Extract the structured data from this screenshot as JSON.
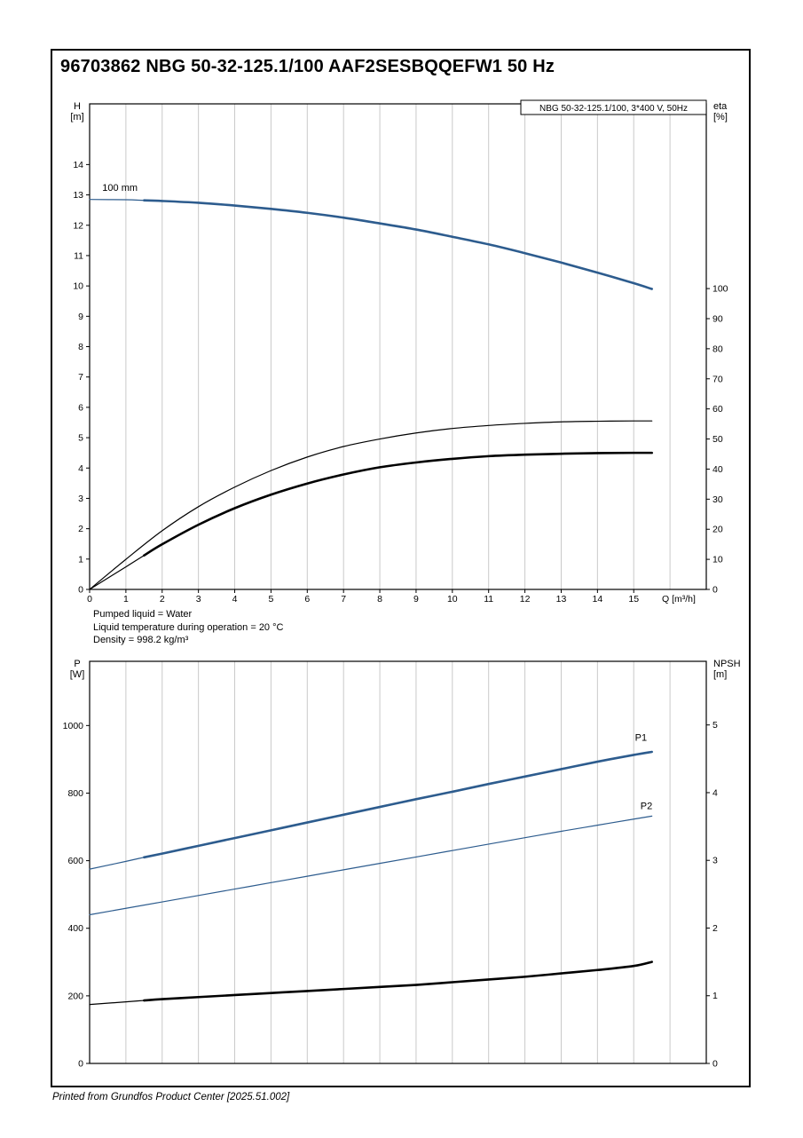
{
  "page": {
    "title": "96703862 NBG 50-32-125.1/100 AAF2SESBQQEFW1 50 Hz",
    "footer": "Printed from Grundfos Product Center [2025.51.002]"
  },
  "info_lines": [
    "Pumped liquid = Water",
    "Liquid temperature during operation = 20 °C",
    "Density = 998.2 kg/m³"
  ],
  "colors": {
    "curve_blue": "#2d5c8e",
    "curve_black": "#000000",
    "grid": "#c9c9c9",
    "axis": "#000000",
    "legend_border": "#000000"
  },
  "chart_data": [
    {
      "id": "hq",
      "type": "line",
      "legend_box": "NBG 50-32-125.1/100, 3*400 V, 50Hz",
      "x": {
        "label": "Q [m³/h]",
        "lim": [
          0,
          17
        ],
        "ticks": [
          0,
          1,
          2,
          3,
          4,
          5,
          6,
          7,
          8,
          9,
          10,
          11,
          12,
          13,
          14,
          15
        ],
        "show_tick_labels": true,
        "gridlines": true
      },
      "y_left": {
        "label_lines": [
          "H",
          "[m]"
        ],
        "lim": [
          0,
          16
        ],
        "ticks": [
          0,
          1,
          2,
          3,
          4,
          5,
          6,
          7,
          8,
          9,
          10,
          11,
          12,
          13,
          14
        ]
      },
      "y_right": {
        "label_lines": [
          "eta",
          "[%]"
        ],
        "lim": [
          0,
          161.4
        ],
        "ticks": [
          0,
          10,
          20,
          30,
          40,
          50,
          60,
          70,
          80,
          90,
          100
        ]
      },
      "series": [
        {
          "id": "head-curve-100mm",
          "axis": "left",
          "color": "#2d5c8e",
          "width": 2.6,
          "thin_until": 1.5,
          "annotation": {
            "text": "100 mm",
            "x": 0.35,
            "y": 13.13,
            "anchor": "start",
            "color": "#000000"
          },
          "points": [
            [
              0,
              12.85
            ],
            [
              1,
              12.84
            ],
            [
              1.5,
              12.82
            ],
            [
              2,
              12.8
            ],
            [
              3,
              12.74
            ],
            [
              4,
              12.65
            ],
            [
              5,
              12.54
            ],
            [
              6,
              12.41
            ],
            [
              7,
              12.25
            ],
            [
              8,
              12.06
            ],
            [
              9,
              11.86
            ],
            [
              10,
              11.62
            ],
            [
              11,
              11.37
            ],
            [
              12,
              11.08
            ],
            [
              13,
              10.77
            ],
            [
              14,
              10.44
            ],
            [
              15,
              10.09
            ],
            [
              15.5,
              9.9
            ]
          ]
        },
        {
          "id": "eta-pump",
          "axis": "right",
          "color": "#000000",
          "width": 1.2,
          "points": [
            [
              0,
              0
            ],
            [
              1,
              10
            ],
            [
              2,
              19.5
            ],
            [
              3,
              27.5
            ],
            [
              4,
              34
            ],
            [
              5,
              39.5
            ],
            [
              6,
              44
            ],
            [
              7,
              47.5
            ],
            [
              8,
              50
            ],
            [
              9,
              52
            ],
            [
              10,
              53.5
            ],
            [
              11,
              54.5
            ],
            [
              12,
              55.2
            ],
            [
              13,
              55.7
            ],
            [
              14,
              55.9
            ],
            [
              15,
              56
            ],
            [
              15.5,
              56
            ]
          ]
        },
        {
          "id": "eta-pump-motor",
          "axis": "right",
          "color": "#000000",
          "width": 2.6,
          "thin_until": 1.5,
          "points": [
            [
              0,
              0
            ],
            [
              1,
              7.5
            ],
            [
              1.5,
              11.3
            ],
            [
              2,
              15
            ],
            [
              3,
              21.5
            ],
            [
              4,
              27
            ],
            [
              5,
              31.5
            ],
            [
              6,
              35.2
            ],
            [
              7,
              38.2
            ],
            [
              8,
              40.6
            ],
            [
              9,
              42.2
            ],
            [
              10,
              43.4
            ],
            [
              11,
              44.3
            ],
            [
              12,
              44.8
            ],
            [
              13,
              45.1
            ],
            [
              14,
              45.3
            ],
            [
              15,
              45.4
            ],
            [
              15.5,
              45.4
            ]
          ]
        }
      ]
    },
    {
      "id": "p-npsh",
      "type": "line",
      "legend_box": "",
      "x": {
        "label": "",
        "lim": [
          0,
          17
        ],
        "ticks": [
          0,
          1,
          2,
          3,
          4,
          5,
          6,
          7,
          8,
          9,
          10,
          11,
          12,
          13,
          14,
          15
        ],
        "show_tick_labels": false,
        "gridlines": true
      },
      "y_left": {
        "label_lines": [
          "P",
          "[W]"
        ],
        "lim": [
          0,
          1190
        ],
        "ticks": [
          0,
          200,
          400,
          600,
          800,
          1000
        ]
      },
      "y_right": {
        "label_lines": [
          "NPSH",
          "[m]"
        ],
        "lim": [
          0,
          5.94
        ],
        "ticks": [
          0,
          1,
          2,
          3,
          4,
          5
        ]
      },
      "series": [
        {
          "id": "p1",
          "axis": "left",
          "color": "#2d5c8e",
          "width": 2.6,
          "thin_until": 1.5,
          "annotation": {
            "text": "P1",
            "x": 15.2,
            "y": 955,
            "anchor": "middle",
            "color": "#2d5c8e"
          },
          "points": [
            [
              0,
              575
            ],
            [
              1,
              598
            ],
            [
              1.5,
              610
            ],
            [
              2,
              621
            ],
            [
              3,
              644
            ],
            [
              4,
              667
            ],
            [
              5,
              690
            ],
            [
              6,
              713
            ],
            [
              7,
              736
            ],
            [
              8,
              759
            ],
            [
              9,
              782
            ],
            [
              10,
              804
            ],
            [
              11,
              827
            ],
            [
              12,
              849
            ],
            [
              13,
              871
            ],
            [
              14,
              893
            ],
            [
              15,
              913
            ],
            [
              15.5,
              922
            ]
          ]
        },
        {
          "id": "p2",
          "axis": "left",
          "color": "#2d5c8e",
          "width": 1.2,
          "annotation": {
            "text": "P2",
            "x": 15.35,
            "y": 752,
            "anchor": "middle",
            "color": "#2d5c8e"
          },
          "points": [
            [
              0,
              440
            ],
            [
              1,
              459
            ],
            [
              2,
              478
            ],
            [
              3,
              497
            ],
            [
              4,
              516
            ],
            [
              5,
              535
            ],
            [
              6,
              554
            ],
            [
              7,
              573
            ],
            [
              8,
              592
            ],
            [
              9,
              611
            ],
            [
              10,
              630
            ],
            [
              11,
              649
            ],
            [
              12,
              668
            ],
            [
              13,
              687
            ],
            [
              14,
              705
            ],
            [
              15,
              723
            ],
            [
              15.5,
              732
            ]
          ]
        },
        {
          "id": "npsh",
          "axis": "right",
          "color": "#000000",
          "width": 2.6,
          "thin_until": 1.5,
          "points": [
            [
              0,
              0.87
            ],
            [
              1,
              0.91
            ],
            [
              1.5,
              0.93
            ],
            [
              2,
              0.95
            ],
            [
              3,
              0.98
            ],
            [
              4,
              1.01
            ],
            [
              5,
              1.04
            ],
            [
              6,
              1.07
            ],
            [
              7,
              1.1
            ],
            [
              8,
              1.13
            ],
            [
              9,
              1.16
            ],
            [
              10,
              1.2
            ],
            [
              11,
              1.24
            ],
            [
              12,
              1.28
            ],
            [
              13,
              1.33
            ],
            [
              14,
              1.38
            ],
            [
              15,
              1.44
            ],
            [
              15.5,
              1.5
            ]
          ]
        }
      ]
    }
  ]
}
